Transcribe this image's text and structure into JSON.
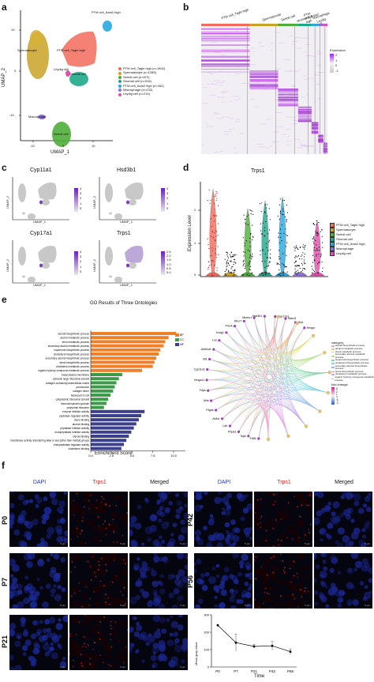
{
  "panel_letters": [
    "a",
    "b",
    "c",
    "d",
    "e",
    "f"
  ],
  "panel_a": {
    "xlabel": "UMAP_1",
    "ylabel": "UMAP_2",
    "x_ticks": [
      "-10",
      "0",
      "10"
    ],
    "y_ticks": [
      "10",
      "0",
      "-10"
    ],
    "cluster_labels": [
      "PTM cell_Acta2 high",
      "Spermatocyte",
      "PTM cell_Tagln high",
      "Leydig cell",
      "Stromal cell",
      "Macrophage",
      "Sertoli cell"
    ],
    "legend": [
      {
        "label": "PTM cell_Tagln high (n=1842)",
        "color": "#f26b5b"
      },
      {
        "label": "Spermatocyte (n=1289)",
        "color": "#c9a227"
      },
      {
        "label": "Sertoli cell (n=872)",
        "color": "#4fae3a"
      },
      {
        "label": "Stromal cell (n=516)",
        "color": "#1fa88a"
      },
      {
        "label": "PTM cell_Acta2 high (n=442)",
        "color": "#27a8e0"
      },
      {
        "label": "Macrophage (n=232)",
        "color": "#8a6fd6"
      },
      {
        "label": "Leydig cell (n=214)",
        "color": "#e34fb0"
      }
    ]
  },
  "panel_b": {
    "column_labels": [
      "PTM cell_Tagln high",
      "Spermatocyte",
      "Sertoli cell",
      "stromal cell",
      "PTM cell_Acta2 high",
      "Macrophage",
      "Leydig cell"
    ],
    "column_colors": [
      "#f26b5b",
      "#c9a227",
      "#4fae3a",
      "#1fa88a",
      "#27a8e0",
      "#8a6fd6",
      "#e34fb0"
    ],
    "legend_title": "Expression",
    "legend_ticks": [
      "2",
      "1",
      "0",
      "-1"
    ]
  },
  "panel_c": {
    "genes": [
      "Cyp11a1",
      "Hsd3b1",
      "Cyp17a1",
      "Trps1"
    ],
    "scales": [
      [
        "4",
        "3",
        "2",
        "1",
        "0"
      ],
      [
        "4",
        "3",
        "2",
        "1",
        "0"
      ],
      [
        "4",
        "3",
        "2",
        "1",
        "0"
      ],
      [
        "2.5",
        "2.0",
        "1.5",
        "1.0",
        "0.5",
        "0.0"
      ]
    ],
    "xlabel": "UMAP_1",
    "ylabel": "UMAP_2"
  },
  "panel_d": {
    "title": "Trps1",
    "ylabel": "Expression Level",
    "y_ticks": [
      "2",
      "1",
      "0"
    ],
    "legend": [
      "PTM cell_Tagln high",
      "Spermatocyte",
      "Sertoli cell",
      "Stromal cell",
      "PTM cell_Acta2 high",
      "Macrophage",
      "Leydig cell"
    ]
  },
  "panel_e": {
    "title": "GO Results of Three Ontologies",
    "xlabel": "Enrichment Score",
    "x_ticks": [
      "0.0",
      "2.5",
      "5.0",
      "7.5",
      "10.0",
      "12.5"
    ],
    "ontology_legend": [
      "BP",
      "CC",
      "MF"
    ],
    "terms": [
      "steroid biosynthetic process",
      "alcohol metabolic process",
      "sterol metabolic process",
      "secondary alcohol metabolic process",
      "isoprenoid biosynthetic process",
      "cholesterol biosynthetic process",
      "secondary alcohol biosynthetic process",
      "sterol biosynthetic process",
      "cholesterol metabolic process",
      "organic hydroxy compound metabolic process",
      "basal plasma membrane",
      "cytosolic large ribosomal subunit",
      "collagen-containing extracellular matrix",
      "peroxisome",
      "collagen trimer",
      "basal part of cell",
      "cytoplasmic ribosomal subunit",
      "ribonucleoprotein granule",
      "polysomal ribosome",
      "enzyme inhibitor activity",
      "peptidase regulator activity",
      "sterol binding",
      "alcohol binding",
      "peptidase inhibitor activity",
      "endopeptidase inhibitor activity",
      "steroid binding",
      "transferase activity, transferring alkyl or aryl (other than methyl) groups",
      "endopeptidase regulator activity",
      "cholesterol binding"
    ],
    "network_genes": [
      "Fdft1",
      "Sqle",
      "Pbpa1",
      "Ldlr",
      "Aldh1",
      "Ptgds",
      "Mvk",
      "Fdps",
      "Hmgcs1",
      "Cyp11a1",
      "Idi1",
      "Aldh1a1",
      "Lss",
      "Insig1",
      "Pmvk",
      "Dhcr7",
      "Msmo1",
      "Hsd3b1",
      "Cyp17a1",
      "Stard1",
      "Mvd",
      "Hmgcr"
    ],
    "network_legend_title": "category",
    "network_categories": [
      "steroid biosynthetic process",
      "alcohol metabolic process",
      "sterol metabolic process",
      "secondary alcohol metabolic process",
      "isoprenoid biosynthetic process",
      "cholesterol biosynthetic process",
      "secondary alcohol biosynthetic process",
      "sterol biosynthetic process",
      "cholesterol metabolic process",
      "organic hydroxy compound metabolic process"
    ],
    "fold_change_title": "fold change",
    "fold_change_ticks": [
      "4",
      "3",
      "2",
      "1",
      "0",
      "-1",
      "-2",
      "-3"
    ]
  },
  "panel_f": {
    "columns_left": [
      "DAPI",
      "Trps1",
      "Merged"
    ],
    "columns_right": [
      "DAPI",
      "Trps1",
      "Merged"
    ],
    "rows_left": [
      "P0",
      "P7",
      "P21"
    ],
    "rows_right": [
      "P42",
      "P56"
    ],
    "scale_text": "5 μm",
    "chart": {
      "ylabel": "Mean gray value",
      "xlabel": "Time",
      "categories": [
        "P0",
        "P7",
        "P21",
        "P42",
        "P56"
      ],
      "y_ticks": [
        "300",
        "200",
        "100",
        "0"
      ]
    }
  },
  "chart_data": {
    "type": "line",
    "categories": [
      "P0",
      "P7",
      "P21",
      "P42",
      "P56"
    ],
    "values": [
      240,
      140,
      118,
      122,
      88
    ],
    "errors": [
      0,
      50,
      12,
      25,
      16
    ],
    "xlabel": "Time",
    "ylabel": "Mean gray value",
    "ylim": [
      0,
      300
    ]
  }
}
